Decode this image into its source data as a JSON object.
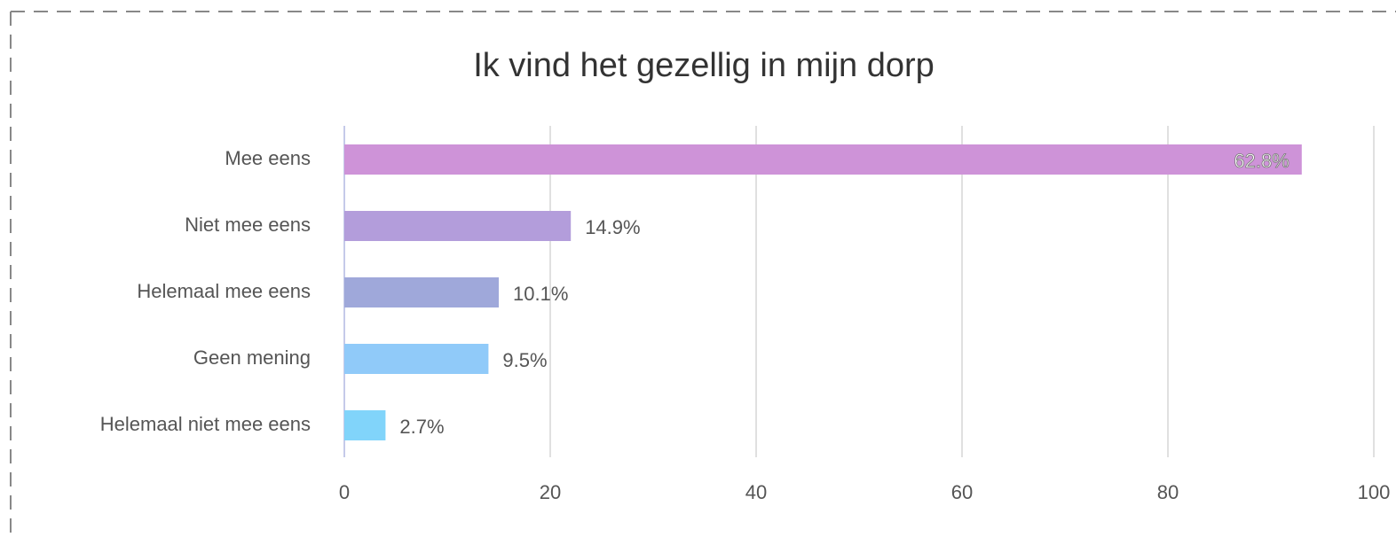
{
  "chart_data": {
    "type": "bar",
    "orientation": "horizontal",
    "title": "Ik vind het gezellig in mijn dorp",
    "categories": [
      "Mee eens",
      "Niet mee eens",
      "Helemaal mee eens",
      "Geen mening",
      "Helemaal niet mee eens"
    ],
    "values": [
      93,
      22,
      15,
      14,
      4
    ],
    "value_labels": [
      "62.8%",
      "14.9%",
      "10.1%",
      "9.5%",
      "2.7%"
    ],
    "colors": [
      "#ce93d8",
      "#b39ddb",
      "#9fa8da",
      "#90caf9",
      "#81d4fa"
    ],
    "xlim": [
      0,
      100
    ],
    "xticks": [
      0,
      20,
      40,
      60,
      80,
      100
    ],
    "grid": true
  }
}
